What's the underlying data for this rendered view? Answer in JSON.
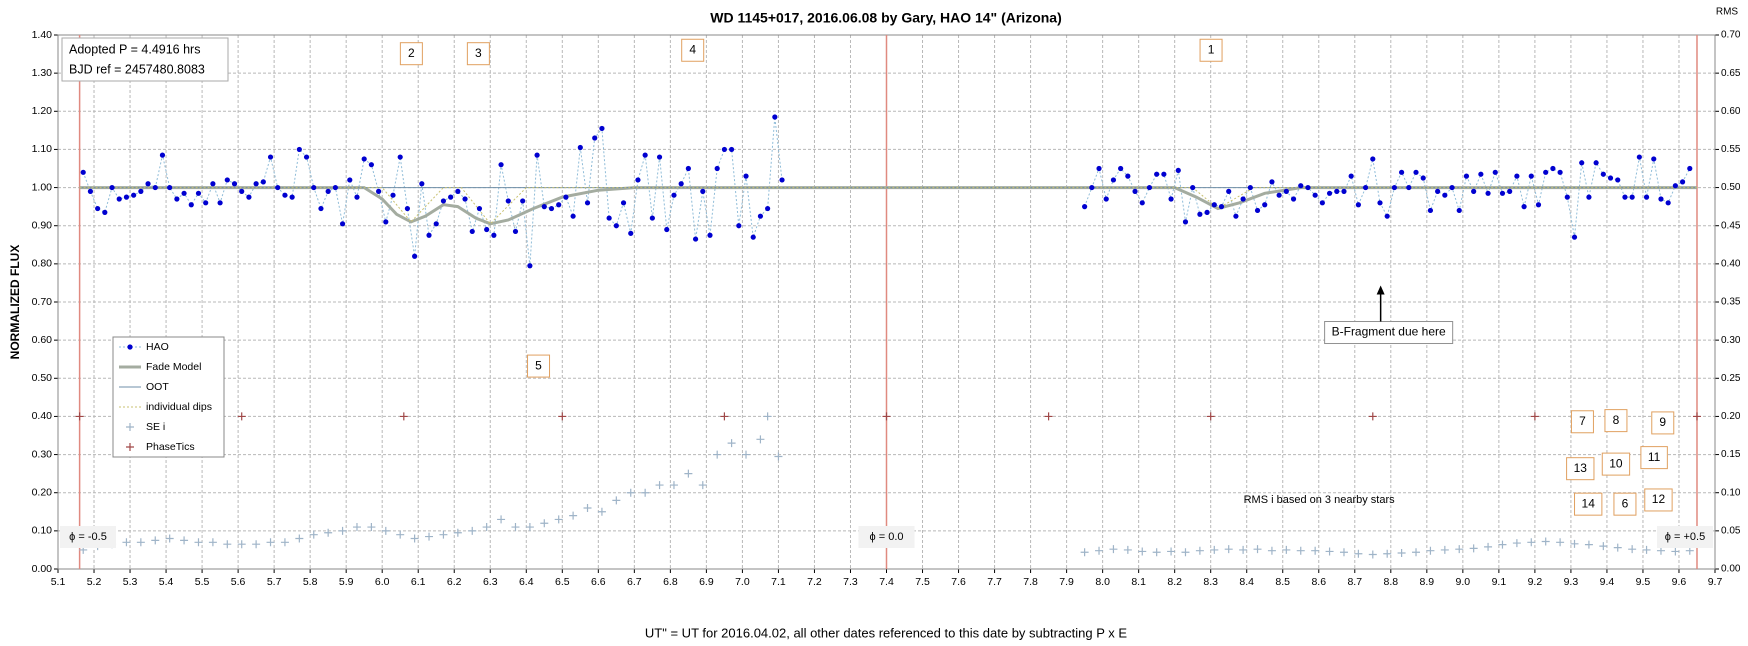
{
  "chart_data": {
    "type": "scatter",
    "title": "WD 1145+017, 2016.06.08  by Gary, HAO 14\" (Arizona)",
    "x_label": "UT\" = UT for 2016.04.02, all other dates referenced to this date by subtracting P x E",
    "y_label": "NORMALIZED FLUX",
    "y2_label": "RMS",
    "xlim": [
      5.1,
      9.7
    ],
    "xticks": [
      5.1,
      5.2,
      5.3,
      5.4,
      5.5,
      5.6,
      5.7,
      5.8,
      5.9,
      {
        "value": 6,
        "label": "6.0"
      },
      6.1,
      6.2,
      6.3,
      6.4,
      6.5,
      6.6,
      6.7,
      6.8,
      6.9,
      {
        "value": 7,
        "label": "7.0"
      },
      7.1,
      7.2,
      7.3,
      7.4,
      7.5,
      7.6,
      7.7,
      7.8,
      7.9,
      {
        "value": 8,
        "label": "8.0"
      },
      8.1,
      8.2,
      8.3,
      8.4,
      8.5,
      8.6,
      8.7,
      8.8,
      8.9,
      {
        "value": 9,
        "label": "9.0"
      },
      9.1,
      9.2,
      9.3,
      9.4,
      9.5,
      9.6,
      9.7
    ],
    "ylim": [
      0,
      1.4
    ],
    "yticks": [
      {
        "value": 0,
        "label": "0.00"
      },
      {
        "value": 0.1,
        "label": "0.10"
      },
      {
        "value": 0.2,
        "label": "0.20"
      },
      {
        "value": 0.3,
        "label": "0.30"
      },
      {
        "value": 0.4,
        "label": "0.40"
      },
      {
        "value": 0.5,
        "label": "0.50"
      },
      {
        "value": 0.6,
        "label": "0.60"
      },
      {
        "value": 0.7,
        "label": "0.70"
      },
      {
        "value": 0.8,
        "label": "0.80"
      },
      {
        "value": 0.9,
        "label": "0.90"
      },
      {
        "value": 1,
        "label": "1.00"
      },
      {
        "value": 1.1,
        "label": "1.10"
      },
      {
        "value": 1.2,
        "label": "1.20"
      },
      {
        "value": 1.3,
        "label": "1.30"
      },
      {
        "value": 1.4,
        "label": "1.40"
      }
    ],
    "y2lim": [
      0,
      0.7
    ],
    "y2ticks": [
      {
        "value": 0,
        "label": "0.00"
      },
      {
        "value": 0.05,
        "label": "0.05"
      },
      {
        "value": 0.1,
        "label": "0.10"
      },
      {
        "value": 0.15,
        "label": "0.15"
      },
      {
        "value": 0.2,
        "label": "0.20"
      },
      {
        "value": 0.25,
        "label": "0.25"
      },
      {
        "value": 0.3,
        "label": "0.30"
      },
      {
        "value": 0.35,
        "label": "0.35"
      },
      {
        "value": 0.4,
        "label": "0.40"
      },
      {
        "value": 0.45,
        "label": "0.45"
      },
      {
        "value": 0.5,
        "label": "0.50"
      },
      {
        "value": 0.55,
        "label": "0.55"
      },
      {
        "value": 0.6,
        "label": "0.60"
      },
      {
        "value": 0.65,
        "label": "0.65"
      },
      {
        "value": 0.7,
        "label": "0.70"
      }
    ],
    "grid": true,
    "legend": "center-left",
    "info": [
      "Adopted P = 4.4916 hrs",
      "BJD ref = 2457480.8083"
    ],
    "phase_lines": [
      {
        "x": 5.16,
        "label": "ϕ = -0.5"
      },
      {
        "x": 7.4,
        "label": "ϕ = 0.0"
      },
      {
        "x": 9.65,
        "label": "ϕ = +0.5"
      }
    ],
    "phase_line_color": "#e08a80",
    "series": [
      {
        "name": "HAO",
        "color": "#0000d0",
        "line_color": "#8fbcd8",
        "marker": "circle",
        "line": "dotted",
        "x": [
          5.17,
          5.19,
          5.21,
          5.23,
          5.25,
          5.27,
          5.29,
          5.31,
          5.33,
          5.35,
          5.37,
          5.39,
          5.41,
          5.43,
          5.45,
          5.47,
          5.49,
          5.51,
          5.53,
          5.55,
          5.57,
          5.59,
          5.61,
          5.63,
          5.65,
          5.67,
          5.69,
          5.71,
          5.73,
          5.75,
          5.77,
          5.79,
          5.81,
          5.83,
          5.85,
          5.87,
          5.89,
          5.91,
          5.93,
          5.95,
          5.97,
          5.99,
          6.01,
          6.03,
          6.05,
          6.07,
          6.09,
          6.11,
          6.13,
          6.15,
          6.17,
          6.19,
          6.21,
          6.23,
          6.25,
          6.27,
          6.29,
          6.31,
          6.33,
          6.35,
          6.37,
          6.39,
          6.41,
          6.43,
          6.45,
          6.47,
          6.49,
          6.51,
          6.53,
          6.55,
          6.57,
          6.59,
          6.61,
          6.63,
          6.65,
          6.67,
          6.69,
          6.71,
          6.73,
          6.75,
          6.77,
          6.79,
          6.81,
          6.83,
          6.85,
          6.87,
          6.89,
          6.91,
          6.93,
          6.95,
          6.97,
          6.99,
          7.01,
          7.03,
          7.05,
          7.07,
          7.09,
          7.11,
          7.5,
          7.95,
          7.97,
          7.99,
          8.01,
          8.03,
          8.05,
          8.07,
          8.09,
          8.11,
          8.13,
          8.15,
          8.17,
          8.19,
          8.21,
          8.23,
          8.25,
          8.27,
          8.29,
          8.31,
          8.33,
          8.35,
          8.37,
          8.39,
          8.41,
          8.43,
          8.45,
          8.47,
          8.49,
          8.51,
          8.53,
          8.55,
          8.57,
          8.59,
          8.61,
          8.63,
          8.65,
          8.67,
          8.69,
          8.71,
          8.73,
          8.75,
          8.77,
          8.79,
          8.81,
          8.83,
          8.85,
          8.87,
          8.89,
          8.91,
          8.93,
          8.95,
          8.97,
          8.99,
          9.01,
          9.03,
          9.05,
          9.07,
          9.09,
          9.11,
          9.13,
          9.15,
          9.17,
          9.19,
          9.21,
          9.23,
          9.25,
          9.27,
          9.29,
          9.31,
          9.33,
          9.35,
          9.37,
          9.39,
          9.41,
          9.43,
          9.45,
          9.47,
          9.49,
          9.51,
          9.53,
          9.55,
          9.57,
          9.59,
          9.61,
          9.63
        ],
        "values": [
          1.04,
          0.99,
          0.945,
          0.935,
          1.0,
          0.97,
          0.975,
          0.98,
          0.99,
          1.01,
          1.0,
          1.085,
          1.0,
          0.97,
          0.985,
          0.955,
          0.985,
          0.96,
          1.01,
          0.96,
          1.02,
          1.01,
          0.99,
          0.975,
          1.01,
          1.015,
          1.08,
          1.0,
          0.98,
          0.975,
          1.1,
          1.08,
          1.0,
          0.945,
          0.99,
          1.0,
          0.905,
          1.02,
          0.975,
          1.075,
          1.06,
          0.99,
          0.91,
          0.98,
          1.08,
          0.945,
          0.82,
          1.01,
          0.875,
          0.905,
          0.965,
          0.975,
          0.99,
          0.97,
          0.885,
          0.945,
          0.89,
          0.875,
          1.06,
          0.965,
          0.885,
          0.965,
          0.795,
          1.085,
          0.95,
          0.945,
          0.955,
          0.975,
          0.925,
          1.105,
          0.96,
          1.13,
          1.155,
          0.92,
          0.9,
          0.96,
          0.88,
          1.02,
          1.085,
          0.92,
          1.08,
          0.89,
          0.98,
          1.01,
          1.05,
          0.865,
          0.99,
          0.875,
          1.05,
          1.1,
          1.1,
          0.9,
          1.03,
          0.87,
          0.925,
          0.945,
          1.185,
          1.02,
          null,
          0.95,
          1.0,
          1.05,
          0.97,
          1.02,
          1.05,
          1.03,
          0.99,
          0.96,
          1.0,
          1.035,
          1.035,
          0.97,
          1.045,
          0.91,
          1.0,
          0.93,
          0.935,
          0.955,
          0.95,
          0.99,
          0.925,
          0.97,
          1.0,
          0.94,
          0.955,
          1.015,
          0.98,
          0.99,
          0.97,
          1.005,
          1.0,
          0.98,
          0.96,
          0.985,
          0.99,
          0.99,
          1.03,
          0.955,
          1.0,
          1.075,
          0.96,
          0.925,
          1.0,
          1.04,
          1.0,
          1.04,
          1.025,
          0.94,
          0.99,
          0.98,
          1.0,
          0.94,
          1.03,
          0.99,
          1.035,
          0.985,
          1.04,
          0.985,
          0.99,
          1.03,
          0.95,
          1.03,
          0.955,
          1.04,
          1.05,
          1.04,
          0.975,
          0.87,
          1.065,
          0.975,
          1.065,
          1.035,
          1.025,
          1.02,
          0.975,
          0.975,
          1.08,
          0.975,
          1.075,
          0.97,
          0.96,
          1.005,
          1.015,
          1.05
        ]
      },
      {
        "name": "Fade Model",
        "color": "#a4aca0",
        "marker": "none",
        "line": "solid",
        "line_width": 3,
        "x": [
          5.16,
          5.95,
          6.0,
          6.04,
          6.08,
          6.12,
          6.17,
          6.21,
          6.26,
          6.3,
          6.35,
          6.42,
          6.5,
          6.6,
          6.7,
          8.2,
          8.26,
          8.32,
          8.38,
          8.45,
          8.55,
          9.65
        ],
        "values": [
          1,
          1,
          0.97,
          0.93,
          0.91,
          0.925,
          0.955,
          0.95,
          0.92,
          0.905,
          0.915,
          0.945,
          0.975,
          0.993,
          1,
          1,
          0.975,
          0.945,
          0.96,
          0.985,
          1,
          1
        ]
      },
      {
        "name": "OOT",
        "color": "#6f8fa8",
        "marker": "none",
        "line": "solid",
        "line_width": 1,
        "x": [
          5.16,
          9.65
        ],
        "values": [
          1,
          1
        ]
      },
      {
        "name": "individual dips",
        "color": "#c8c070",
        "marker": "none",
        "line": "dotted",
        "line_width": 1,
        "x": [
          5.16,
          6.0,
          6.08,
          6.17,
          6.22,
          6.3,
          6.4,
          6.5,
          8.25,
          8.32,
          8.42,
          9.65
        ],
        "values": [
          1,
          1,
          0.91,
          1,
          1,
          0.905,
          1,
          1,
          1,
          0.945,
          1,
          1
        ]
      },
      {
        "name": "SE i",
        "color": "#9fb4c8",
        "marker": "plus",
        "line": "none",
        "axis": "y2",
        "x": [
          5.17,
          5.21,
          5.25,
          5.29,
          5.33,
          5.37,
          5.41,
          5.45,
          5.49,
          5.53,
          5.57,
          5.61,
          5.65,
          5.69,
          5.73,
          5.77,
          5.81,
          5.85,
          5.89,
          5.93,
          5.97,
          6.01,
          6.05,
          6.09,
          6.13,
          6.17,
          6.21,
          6.25,
          6.29,
          6.33,
          6.37,
          6.41,
          6.45,
          6.49,
          6.53,
          6.57,
          6.61,
          6.65,
          6.69,
          6.73,
          6.77,
          6.81,
          6.85,
          6.89,
          6.93,
          6.97,
          7.01,
          7.05,
          7.07,
          7.1,
          7.95,
          7.99,
          8.03,
          8.07,
          8.11,
          8.15,
          8.19,
          8.23,
          8.27,
          8.31,
          8.35,
          8.39,
          8.43,
          8.47,
          8.51,
          8.55,
          8.59,
          8.63,
          8.67,
          8.71,
          8.75,
          8.79,
          8.83,
          8.87,
          8.91,
          8.95,
          8.99,
          9.03,
          9.07,
          9.11,
          9.15,
          9.19,
          9.23,
          9.27,
          9.31,
          9.35,
          9.39,
          9.43,
          9.47,
          9.51,
          9.55,
          9.59,
          9.63
        ],
        "values": [
          0.025,
          0.03,
          0.0325,
          0.035,
          0.035,
          0.0375,
          0.04,
          0.0375,
          0.035,
          0.035,
          0.0325,
          0.0325,
          0.0325,
          0.035,
          0.035,
          0.04,
          0.045,
          0.0475,
          0.05,
          0.055,
          0.055,
          0.05,
          0.045,
          0.04,
          0.0425,
          0.045,
          0.0475,
          0.05,
          0.055,
          0.065,
          0.055,
          0.055,
          0.06,
          0.065,
          0.07,
          0.08,
          0.075,
          0.09,
          0.1,
          0.1,
          0.11,
          0.11,
          0.125,
          0.11,
          0.15,
          0.165,
          0.15,
          0.17,
          0.2,
          0.1475,
          0.022,
          0.024,
          0.026,
          0.025,
          0.023,
          0.022,
          0.023,
          0.022,
          0.024,
          0.025,
          0.026,
          0.025,
          0.026,
          0.024,
          0.025,
          0.024,
          0.024,
          0.023,
          0.022,
          0.02,
          0.019,
          0.02,
          0.021,
          0.022,
          0.024,
          0.025,
          0.026,
          0.027,
          0.029,
          0.032,
          0.034,
          0.035,
          0.036,
          0.035,
          0.033,
          0.032,
          0.03,
          0.028,
          0.026,
          0.025,
          0.024,
          0.023,
          0.024
        ]
      },
      {
        "name": "PhaseTics",
        "color": "#a04848",
        "marker": "plus",
        "line": "none",
        "x": [
          5.16,
          5.61,
          6.06,
          6.5,
          6.95,
          7.4,
          7.85,
          8.3,
          8.75,
          9.2,
          9.65
        ],
        "values": [
          0.4,
          0.4,
          0.4,
          0.4,
          0.4,
          0.4,
          0.4,
          0.4,
          0.4,
          0.4,
          0.4
        ]
      }
    ],
    "annotations": [
      {
        "text": "2",
        "x": 6.081,
        "y": 1.351,
        "border": "#e0a060"
      },
      {
        "text": "3",
        "x": 6.267,
        "y": 1.351,
        "border": "#e0a060"
      },
      {
        "text": "4",
        "x": 6.862,
        "y": 1.36,
        "border": "#e0a060"
      },
      {
        "text": "1",
        "x": 8.301,
        "y": 1.36,
        "border": "#e0a060"
      },
      {
        "text": "5",
        "x": 6.434,
        "y": 0.532,
        "border": "#e0a060"
      },
      {
        "text": "7",
        "x": 9.332,
        "y": 0.386,
        "border": "#e0a060"
      },
      {
        "text": "8",
        "x": 9.425,
        "y": 0.389,
        "border": "#e0a060"
      },
      {
        "text": "9",
        "x": 9.555,
        "y": 0.383,
        "border": "#e0a060"
      },
      {
        "text": "13",
        "x": 9.326,
        "y": 0.263,
        "border": "#e0a060"
      },
      {
        "text": "10",
        "x": 9.425,
        "y": 0.275,
        "border": "#e0a060"
      },
      {
        "text": "11",
        "x": 9.531,
        "y": 0.292,
        "border": "#e0a060"
      },
      {
        "text": "14",
        "x": 9.348,
        "y": 0.17,
        "border": "#e0a060"
      },
      {
        "text": "6",
        "x": 9.45,
        "y": 0.17,
        "border": "#e0a060"
      },
      {
        "text": "12",
        "x": 9.543,
        "y": 0.181,
        "border": "#e0a060"
      },
      {
        "text": "B-Fragment due here",
        "x": 8.794,
        "y": 0.62,
        "border": "#909090",
        "arrow": true
      },
      {
        "text": "RMS i based on 3 nearby stars",
        "x": 8.601,
        "y": 0.181
      }
    ]
  }
}
